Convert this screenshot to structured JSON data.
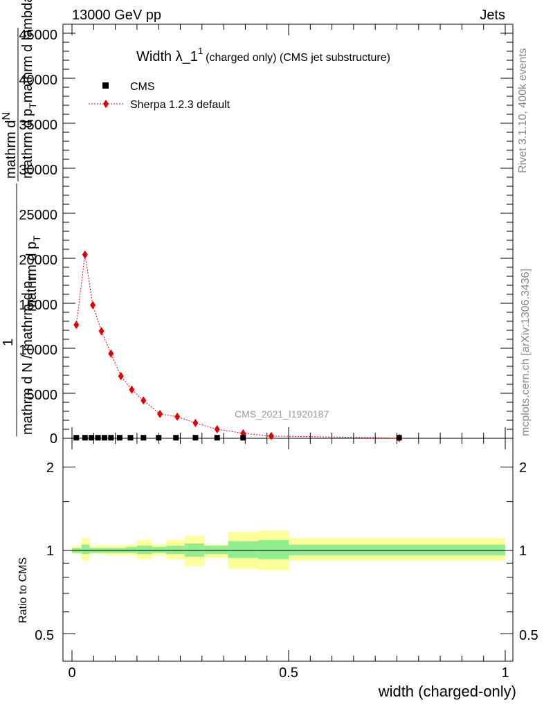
{
  "header": {
    "left": "13000 GeV pp",
    "right": "Jets"
  },
  "side": {
    "rivet": "Rivet 3.1.10,  400k events",
    "mcplots": "mcplots.cern.ch [arXiv:1306.3436]"
  },
  "watermark": "CMS_2021_I1920187",
  "title": {
    "main": "Width λ_1",
    "sup": "1",
    "rest": "(charged only) (CMS jet substructure)"
  },
  "ylabel_main": {
    "line1": "mathrm d",
    "line1b": "N",
    "line2": "mathrm d p",
    "line2sub": "T",
    "line2b": "mathrm d lambda",
    "one": "1",
    "denom": "mathrm d N / mathrm d p",
    "denomsub": "T",
    "denom2": "mathrm d p",
    "denom2sub": "T"
  },
  "ylabel_ratio": "Ratio to CMS",
  "xlabel": "width (charged-only)",
  "legend": [
    {
      "name": "CMS",
      "color": "#000000"
    },
    {
      "name": "Sherpa 1.2.3 default",
      "color": "#e00000"
    }
  ],
  "colors": {
    "mc": "#e00000",
    "band_inner": "#90ee90",
    "band_outer": "#ffff99"
  },
  "chart_data": {
    "type": "line",
    "xlim": [
      -0.02,
      1.0
    ],
    "ylim_main": [
      0,
      45000
    ],
    "ylim_ratio": [
      0.4,
      2.4
    ],
    "xticks": [
      0,
      0.5,
      1
    ],
    "xtick_labels": [
      "0",
      "0.5",
      "1"
    ],
    "yticks_main": [
      0,
      5000,
      10000,
      15000,
      20000,
      25000,
      30000,
      35000,
      40000,
      45000
    ],
    "ytick_labels_main": [
      "0",
      "5000",
      "10000",
      "15000",
      "20000",
      "25000",
      "30000",
      "35000",
      "40000",
      "45000"
    ],
    "yticks_ratio": [
      0.5,
      1,
      2
    ],
    "ytick_labels_ratio": [
      "0.5",
      "1",
      "2"
    ],
    "cms": {
      "x": [
        0.01,
        0.03,
        0.045,
        0.06,
        0.075,
        0.09,
        0.11,
        0.135,
        0.165,
        0.2,
        0.24,
        0.285,
        0.335,
        0.395,
        0.755
      ],
      "y": [
        60,
        60,
        60,
        60,
        60,
        60,
        60,
        60,
        60,
        60,
        60,
        60,
        60,
        60,
        60
      ]
    },
    "sherpa": {
      "x": [
        0.01,
        0.03,
        0.048,
        0.068,
        0.09,
        0.113,
        0.138,
        0.165,
        0.203,
        0.243,
        0.285,
        0.335,
        0.395,
        0.46,
        0.755
      ],
      "y": [
        12600,
        20400,
        14800,
        11900,
        9400,
        6900,
        5400,
        4200,
        2700,
        2400,
        1700,
        1000,
        550,
        250,
        20
      ]
    },
    "ratio_bands": [
      {
        "x0": 0.0,
        "x1": 0.022,
        "in_lo": 0.98,
        "in_hi": 1.02,
        "out_lo": 0.97,
        "out_hi": 1.04
      },
      {
        "x0": 0.022,
        "x1": 0.04,
        "in_lo": 0.97,
        "in_hi": 1.05,
        "out_lo": 0.92,
        "out_hi": 1.11
      },
      {
        "x0": 0.04,
        "x1": 0.08,
        "in_lo": 0.98,
        "in_hi": 1.02,
        "out_lo": 0.97,
        "out_hi": 1.04
      },
      {
        "x0": 0.08,
        "x1": 0.125,
        "in_lo": 0.98,
        "in_hi": 1.02,
        "out_lo": 0.96,
        "out_hi": 1.04
      },
      {
        "x0": 0.125,
        "x1": 0.15,
        "in_lo": 0.98,
        "in_hi": 1.03,
        "out_lo": 0.96,
        "out_hi": 1.05
      },
      {
        "x0": 0.15,
        "x1": 0.185,
        "in_lo": 0.97,
        "in_hi": 1.04,
        "out_lo": 0.93,
        "out_hi": 1.09
      },
      {
        "x0": 0.185,
        "x1": 0.218,
        "in_lo": 0.98,
        "in_hi": 1.03,
        "out_lo": 0.96,
        "out_hi": 1.05
      },
      {
        "x0": 0.218,
        "x1": 0.26,
        "in_lo": 0.97,
        "in_hi": 1.04,
        "out_lo": 0.93,
        "out_hi": 1.09
      },
      {
        "x0": 0.26,
        "x1": 0.305,
        "in_lo": 0.95,
        "in_hi": 1.06,
        "out_lo": 0.88,
        "out_hi": 1.13
      },
      {
        "x0": 0.305,
        "x1": 0.36,
        "in_lo": 0.97,
        "in_hi": 1.04,
        "out_lo": 0.94,
        "out_hi": 1.05
      },
      {
        "x0": 0.36,
        "x1": 0.43,
        "in_lo": 0.94,
        "in_hi": 1.08,
        "out_lo": 0.86,
        "out_hi": 1.17
      },
      {
        "x0": 0.43,
        "x1": 0.5,
        "in_lo": 0.93,
        "in_hi": 1.09,
        "out_lo": 0.85,
        "out_hi": 1.18
      },
      {
        "x0": 0.5,
        "x1": 1.0,
        "in_lo": 0.96,
        "in_hi": 1.05,
        "out_lo": 0.92,
        "out_hi": 1.11
      }
    ]
  }
}
